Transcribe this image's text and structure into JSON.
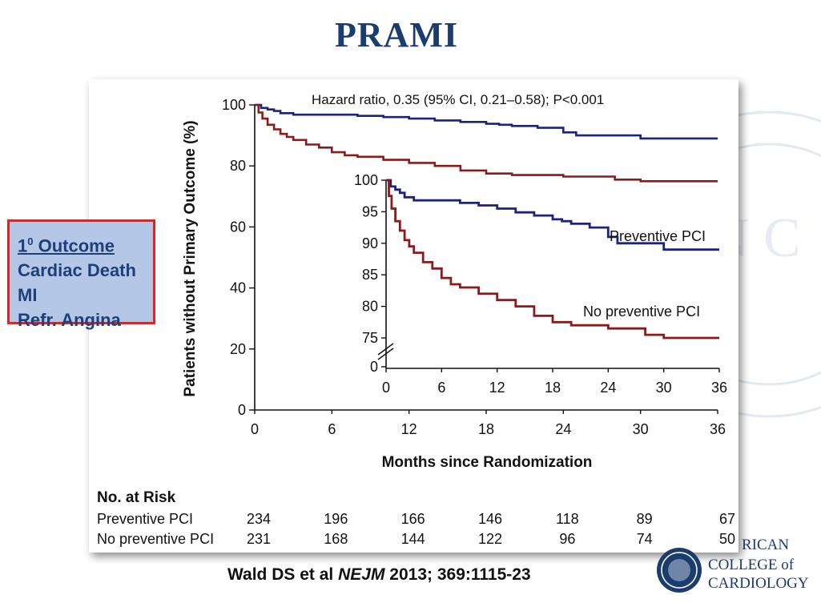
{
  "slide": {
    "title": "PRAMI",
    "outcome_box": {
      "heading_number": "1",
      "heading_superscript": "0",
      "heading_text": " Outcome",
      "items": [
        "Cardiac Death",
        "MI",
        "Refr. Angina"
      ]
    },
    "citation": {
      "authors": "Wald DS et al ",
      "journal": "NEJM",
      "details": " 2013; 369:1115-23"
    },
    "logo": {
      "lines": [
        "RICAN",
        "COLLEGE of",
        "CARDIOLOGY"
      ]
    }
  },
  "colors": {
    "title": "#1b3c6e",
    "preventive_pci": "#1a237e",
    "no_preventive_pci": "#8b1a1a",
    "outcome_fill": "#b4c7e7",
    "outcome_border": "#e0241f",
    "outcome_text": "#1f3f78"
  },
  "chart_data": [
    {
      "type": "line",
      "step": true,
      "title": "",
      "annotation": "Hazard ratio, 0.35 (95% CI, 0.21–0.58); P<0.001",
      "xlabel": "Months since Randomization",
      "ylabel": "Patients without Primary Outcome (%)",
      "xlim": [
        0,
        36
      ],
      "ylim": [
        0,
        100
      ],
      "xticks": [
        0,
        6,
        12,
        18,
        24,
        30,
        36
      ],
      "yticks": [
        0,
        20,
        40,
        60,
        80,
        100
      ],
      "series": [
        {
          "name": "Preventive PCI",
          "color": "#1a237e",
          "x": [
            0,
            0.5,
            1,
            1.5,
            2,
            3,
            5,
            8,
            10,
            12,
            14,
            16,
            18,
            19,
            20,
            22,
            24,
            25,
            28,
            30,
            36
          ],
          "y": [
            100,
            99,
            98.5,
            98,
            97.3,
            96.8,
            96.8,
            96.4,
            96,
            95.5,
            94.9,
            94.4,
            93.8,
            93.5,
            93.1,
            92.5,
            91,
            90,
            90,
            89,
            89
          ]
        },
        {
          "name": "No preventive PCI",
          "color": "#8b1a1a",
          "x": [
            0,
            0.3,
            0.6,
            1,
            1.5,
            2,
            2.5,
            3,
            4,
            5,
            6,
            7,
            8,
            10,
            12,
            14,
            16,
            18,
            20,
            24,
            28,
            30,
            36
          ],
          "y": [
            100,
            97.5,
            95.5,
            93.5,
            92,
            90.5,
            89.5,
            88.5,
            87,
            86,
            84.5,
            83.5,
            83,
            82,
            81,
            80,
            78.5,
            77.5,
            77,
            76.5,
            75.5,
            75,
            75
          ]
        }
      ],
      "risk_table": {
        "title": "No. at Risk",
        "rows": [
          {
            "label": "Preventive PCI",
            "values": [
              234,
              196,
              166,
              146,
              118,
              89,
              67
            ]
          },
          {
            "label": "No preventive PCI",
            "values": [
              231,
              168,
              144,
              122,
              96,
              74,
              50
            ]
          }
        ]
      }
    },
    {
      "type": "line",
      "step": true,
      "title": "",
      "inset": true,
      "xlim": [
        0,
        36
      ],
      "ylim": [
        75,
        100
      ],
      "y_axis_break": true,
      "xticks": [
        0,
        6,
        12,
        18,
        24,
        30,
        36
      ],
      "yticks": [
        0,
        75,
        80,
        85,
        90,
        95,
        100
      ],
      "series": [
        {
          "name": "Preventive PCI",
          "color": "#1a237e",
          "x": [
            0,
            0.5,
            1,
            1.5,
            2,
            3,
            5,
            8,
            10,
            12,
            14,
            16,
            18,
            19,
            20,
            22,
            24,
            25,
            28,
            30,
            36
          ],
          "y": [
            100,
            99,
            98.5,
            98,
            97.3,
            96.8,
            96.8,
            96.4,
            96,
            95.5,
            94.9,
            94.4,
            93.8,
            93.5,
            93.1,
            92.5,
            91,
            90,
            90,
            89,
            89
          ]
        },
        {
          "name": "No preventive PCI",
          "color": "#8b1a1a",
          "x": [
            0,
            0.3,
            0.6,
            1,
            1.5,
            2,
            2.5,
            3,
            4,
            5,
            6,
            7,
            8,
            10,
            12,
            14,
            16,
            18,
            20,
            24,
            28,
            30,
            36
          ],
          "y": [
            100,
            97.5,
            95.5,
            93.5,
            92,
            90.5,
            89.5,
            88.5,
            87,
            86,
            84.5,
            83.5,
            83,
            82,
            81,
            80,
            78.5,
            77.5,
            77,
            76.5,
            75.5,
            75,
            75
          ]
        }
      ]
    }
  ]
}
